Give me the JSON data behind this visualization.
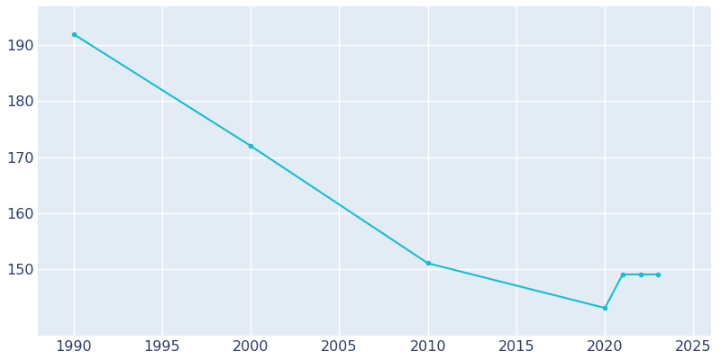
{
  "years": [
    1990,
    2000,
    2010,
    2020,
    2021,
    2022,
    2023
  ],
  "population": [
    192,
    172,
    151,
    143,
    149,
    149,
    149
  ],
  "line_color": "#17BECF",
  "marker": "o",
  "markersize": 3,
  "linewidth": 1.5,
  "bg_color": "#FFFFFF",
  "plot_bg_color": "#E3ECF5",
  "grid_color": "#FFFFFF",
  "xlim": [
    1988,
    2026
  ],
  "ylim": [
    138,
    197
  ],
  "xticks": [
    1990,
    1995,
    2000,
    2005,
    2010,
    2015,
    2020,
    2025
  ],
  "yticks": [
    150,
    160,
    170,
    180,
    190
  ],
  "tick_color": "#2E3A6E",
  "tick_fontsize": 11.5
}
